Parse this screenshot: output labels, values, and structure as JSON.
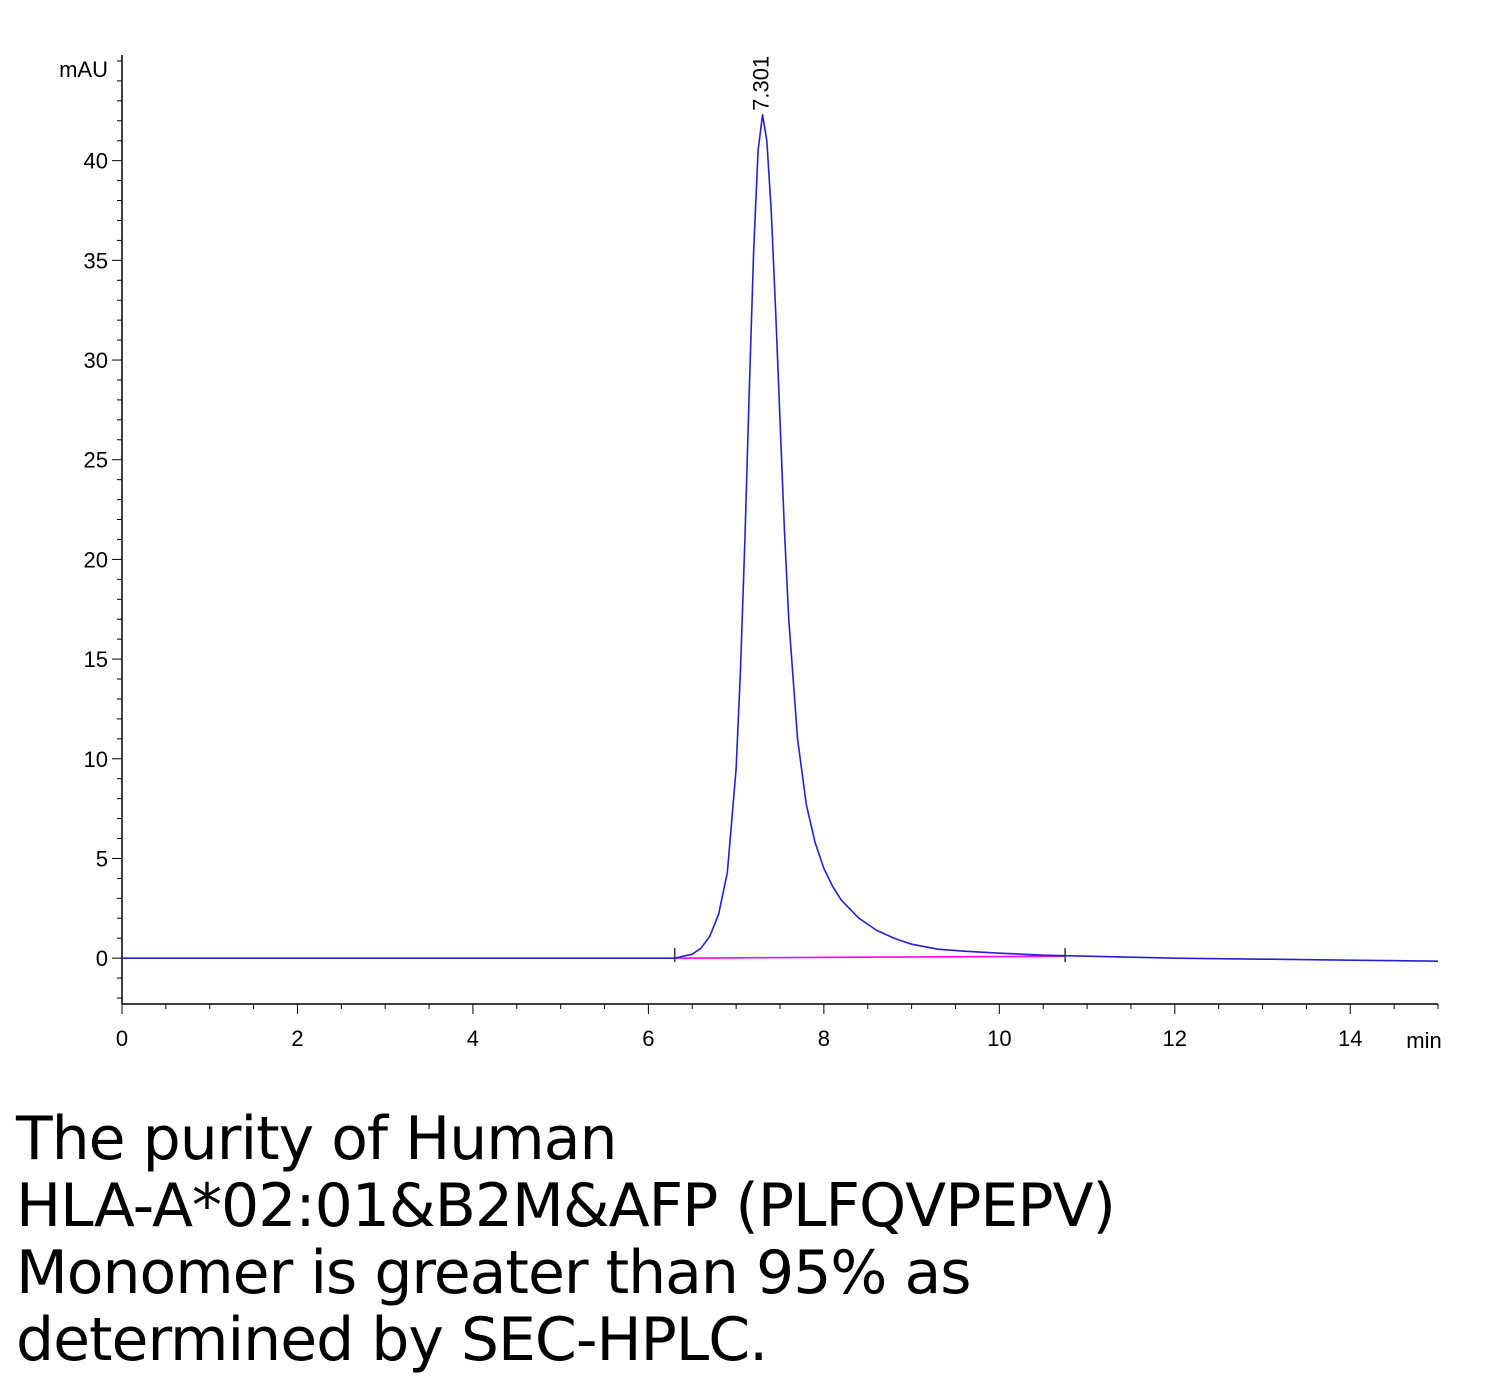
{
  "chart_data": {
    "type": "line",
    "title": "",
    "xlabel": "min",
    "ylabel": "mAU",
    "xlim": [
      0,
      15
    ],
    "ylim": [
      -2.3,
      45.3
    ],
    "x_ticks": [
      0,
      2,
      4,
      6,
      8,
      10,
      12,
      14
    ],
    "y_ticks": [
      0,
      5,
      10,
      15,
      20,
      25,
      30,
      35,
      40
    ],
    "x_tick_labels": [
      "0",
      "2",
      "4",
      "6",
      "8",
      "10",
      "12",
      "14"
    ],
    "y_tick_labels": [
      "0",
      "5",
      "10",
      "15",
      "20",
      "25",
      "30",
      "35",
      "40"
    ],
    "grid": false,
    "legend": "none",
    "peak_label": "7.301",
    "peak_rt": 7.301,
    "series": [
      {
        "color": "#2222cc",
        "x": [
          0,
          1,
          2,
          3,
          4,
          5,
          6,
          6.3,
          6.5,
          6.6,
          6.7,
          6.8,
          6.9,
          7.0,
          7.05,
          7.1,
          7.15,
          7.2,
          7.25,
          7.301,
          7.35,
          7.4,
          7.45,
          7.5,
          7.55,
          7.6,
          7.7,
          7.8,
          7.9,
          8.0,
          8.1,
          8.2,
          8.4,
          8.6,
          8.8,
          9.0,
          9.3,
          9.6,
          10.0,
          10.5,
          11.0,
          11.5,
          12.0,
          13.0,
          14.0,
          15.0
        ],
        "y": [
          0.0,
          0.0,
          0.0,
          0.0,
          0.0,
          0.0,
          0.0,
          0.0,
          0.2,
          0.5,
          1.1,
          2.2,
          4.3,
          9.5,
          14.5,
          21.0,
          28.5,
          35.5,
          40.5,
          42.3,
          41.0,
          37.5,
          32.5,
          27.0,
          21.5,
          17.0,
          11.0,
          7.7,
          5.8,
          4.5,
          3.6,
          2.9,
          2.0,
          1.4,
          1.0,
          0.7,
          0.45,
          0.35,
          0.25,
          0.15,
          0.1,
          0.05,
          0.0,
          -0.05,
          -0.1,
          -0.15
        ]
      },
      {
        "color": "#ff00ff",
        "x": [
          6.3,
          10.75
        ],
        "y": [
          0.0,
          0.1
        ]
      }
    ],
    "integration_marks": [
      6.3,
      10.75
    ]
  },
  "caption": {
    "lines": [
      "The purity of Human",
      "HLA-A*02:01&B2M&AFP (PLFQVPEPV)",
      "Monomer is greater than 95% as",
      "determined by SEC-HPLC."
    ]
  }
}
